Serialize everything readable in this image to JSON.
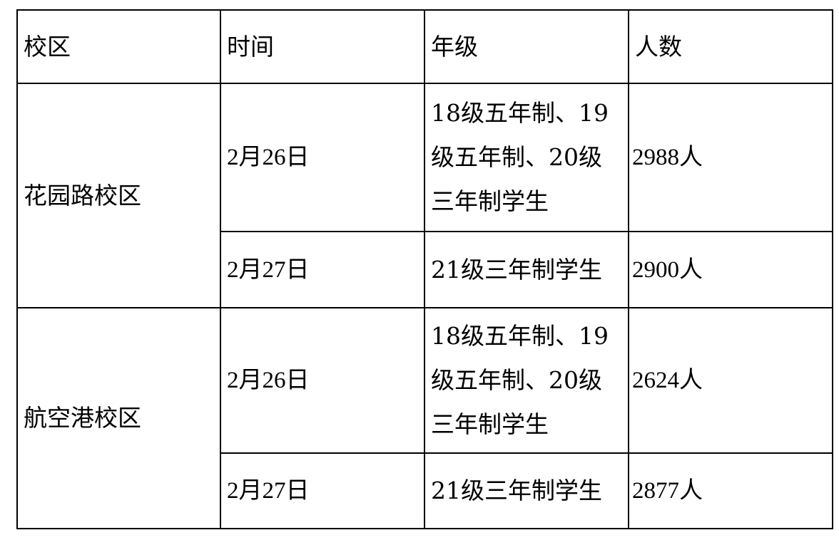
{
  "table": {
    "headers": [
      "校区",
      "时间",
      "年级",
      "人数"
    ],
    "groups": [
      {
        "campus": "花园路校区",
        "rows": [
          {
            "date": "2月26日",
            "grade": "18级五年制、19级五年制、20级三年制学生",
            "count": "2988人"
          },
          {
            "date": "2月27日",
            "grade": "21级三年制学生",
            "count": "2900人"
          }
        ]
      },
      {
        "campus": "航空港校区",
        "rows": [
          {
            "date": "2月26日",
            "grade": "18级五年制、19级五年制、20级三年制学生",
            "count": "2624人"
          },
          {
            "date": "2月27日",
            "grade": "21级三年制学生",
            "count": "2877人"
          }
        ]
      }
    ]
  }
}
